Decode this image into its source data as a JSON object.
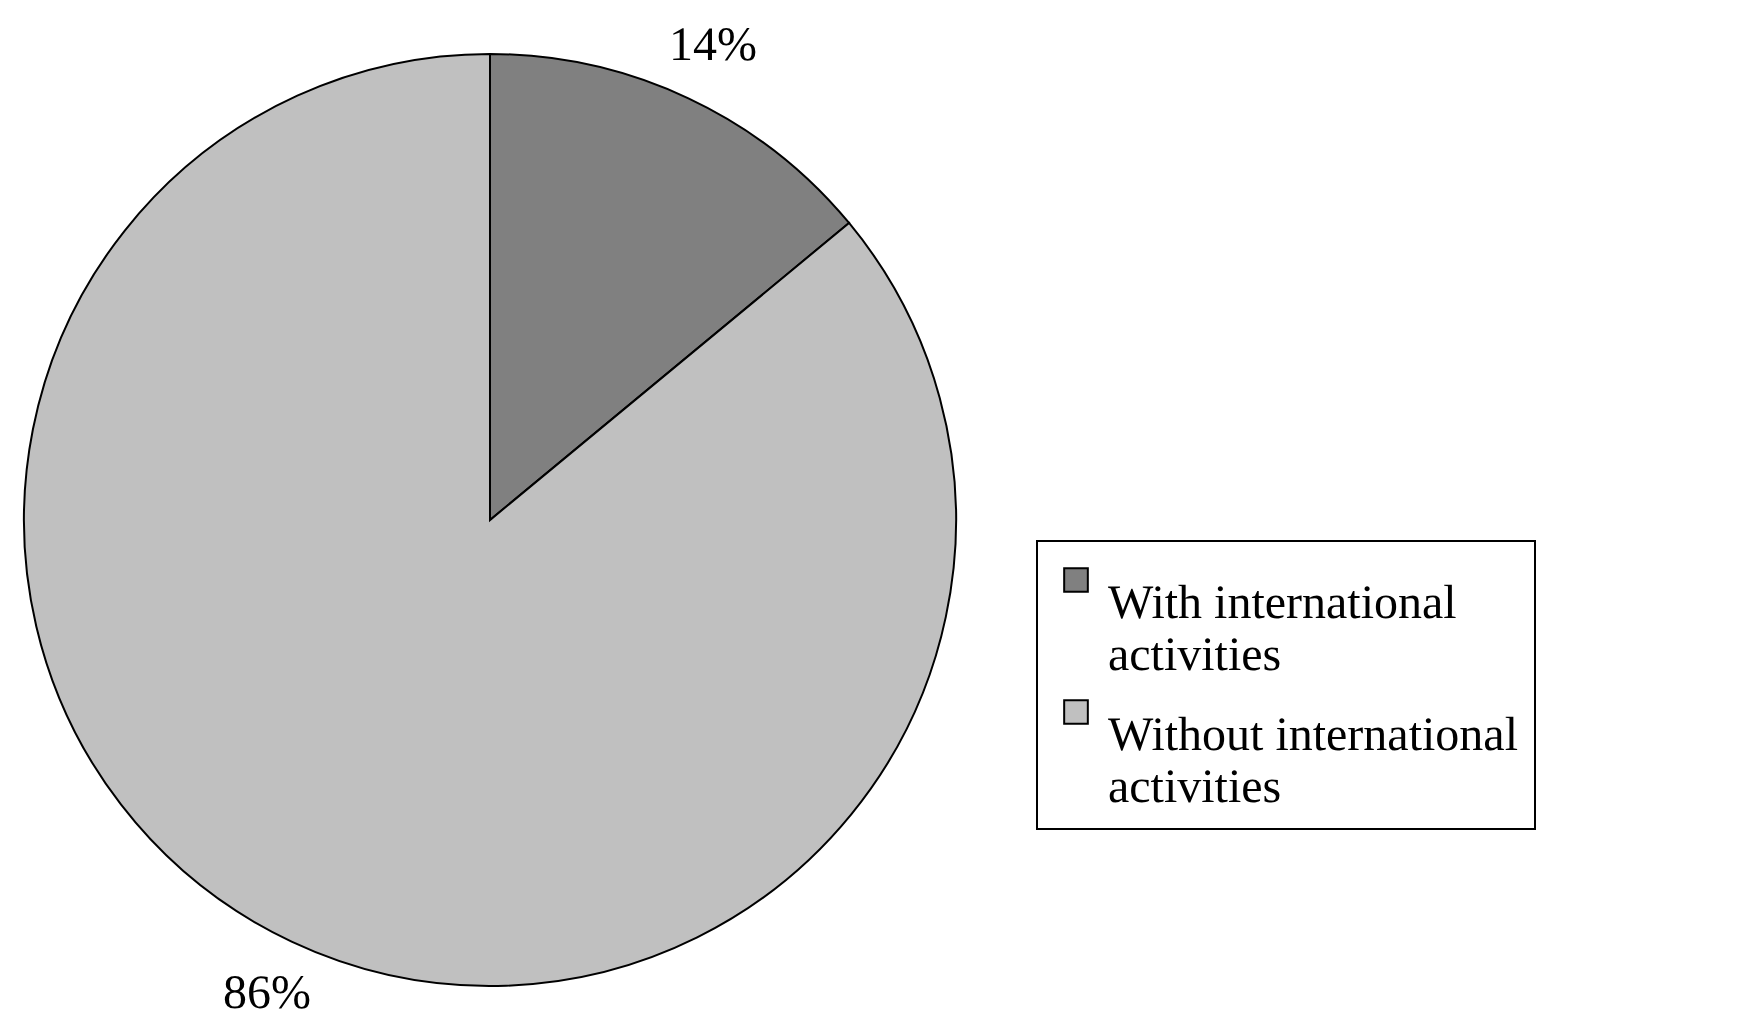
{
  "chart_data": {
    "type": "pie",
    "categories": [
      "With international activities",
      "Without international activities"
    ],
    "values": [
      14,
      86
    ],
    "colors": [
      "#808080",
      "#c0c0c0"
    ],
    "value_labels": [
      "14%",
      "86%"
    ],
    "legend": "right"
  }
}
